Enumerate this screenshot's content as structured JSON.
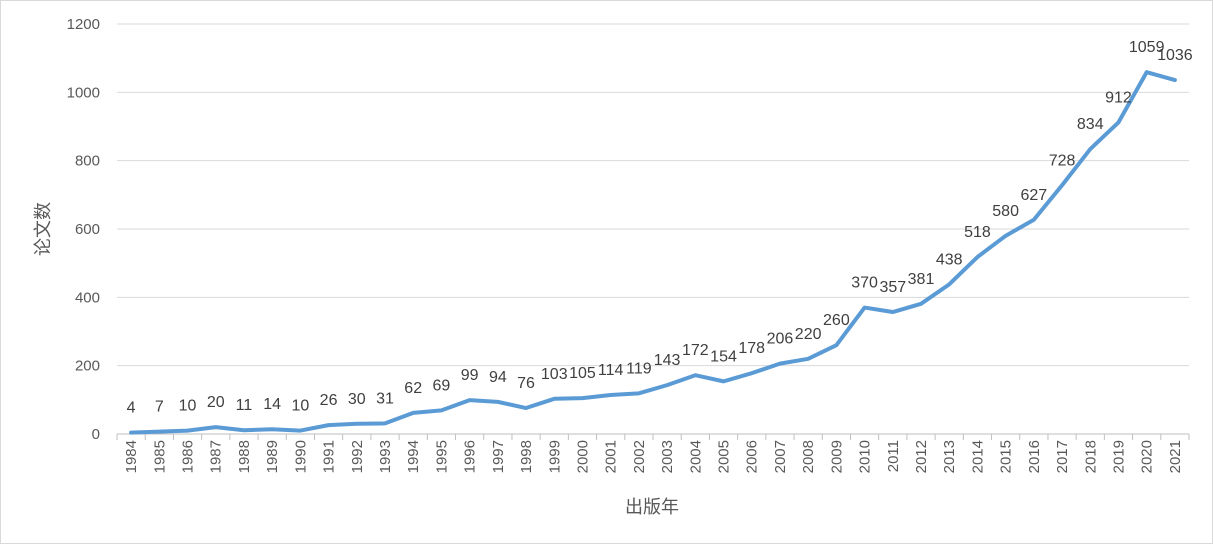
{
  "chart_data": {
    "type": "line",
    "xlabel": "出版年",
    "ylabel": "论文数",
    "ylim": [
      0,
      1200
    ],
    "yticks": [
      0,
      200,
      400,
      600,
      800,
      1000,
      1200
    ],
    "grid": "horizontal",
    "line_color": "#5B9BD5",
    "categories": [
      "1984",
      "1985",
      "1986",
      "1987",
      "1988",
      "1989",
      "1990",
      "1991",
      "1992",
      "1993",
      "1994",
      "1995",
      "1996",
      "1997",
      "1998",
      "1999",
      "2000",
      "2001",
      "2002",
      "2003",
      "2004",
      "2005",
      "2006",
      "2007",
      "2008",
      "2009",
      "2010",
      "2011",
      "2012",
      "2013",
      "2014",
      "2015",
      "2016",
      "2017",
      "2018",
      "2019",
      "2020",
      "2021"
    ],
    "series": [
      {
        "values": [
          4,
          7,
          10,
          20,
          11,
          14,
          10,
          26,
          30,
          31,
          62,
          69,
          99,
          94,
          76,
          103,
          105,
          114,
          119,
          143,
          172,
          154,
          178,
          206,
          220,
          260,
          370,
          357,
          381,
          438,
          518,
          580,
          627,
          728,
          834,
          912,
          1059,
          1036
        ]
      }
    ]
  }
}
